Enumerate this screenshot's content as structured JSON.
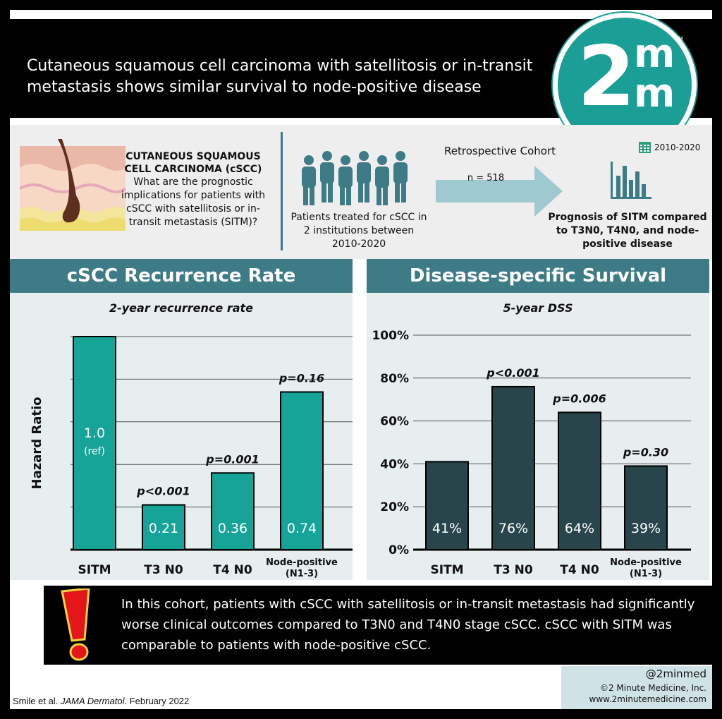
{
  "header": {
    "title": "Cutaneous squamous cell carcinoma with satellitosis or in-transit metastasis shows similar survival to node-positive disease",
    "logo": {
      "two": "2",
      "m": "m",
      "tm": "TM"
    }
  },
  "info": {
    "cscc_title": "CUTANEOUS SQUAMOUS CELL CARCINOMA (cSCC)",
    "cscc_question": "What are the prognostic implications for patients with cSCC with satellitosis or in-transit metastasis (SITM)?",
    "patients": "Patients treated for cSCC in 2 institutions between 2010-2020",
    "cohort_label": "Retrospective Cohort",
    "n": "n = 518",
    "years": "2010-2020",
    "prognosis": "Prognosis of SITM compared to T3N0, T4N0, and node-positive disease",
    "icons": [
      "skin-hair-follicle-icon",
      "people-group-icon",
      "arrow-right-icon",
      "calendar-icon",
      "bar-chart-icon"
    ]
  },
  "panels": {
    "left_header": "cSCC Recurrence Rate",
    "right_header": "Disease-specific Survival"
  },
  "chart_data": [
    {
      "type": "bar",
      "title": "2-year recurrence rate",
      "ylabel": "Hazard Ratio",
      "ylim": [
        0,
        1.0
      ],
      "grid": true,
      "color": "#15a497",
      "categories": [
        "SITM",
        "T3 N0",
        "T4 N0",
        "Node-positive\n(N1-3)"
      ],
      "values": [
        1.0,
        0.21,
        0.36,
        0.74
      ],
      "value_labels": [
        "1.0\n(ref)",
        "0.21",
        "0.36",
        "0.74"
      ],
      "pvalues": [
        "",
        "p<0.001",
        "p=0.001",
        "p=0.16"
      ]
    },
    {
      "type": "bar",
      "title": "5-year DSS",
      "ylim": [
        0,
        100
      ],
      "yticks": [
        "0%",
        "20%",
        "40%",
        "60%",
        "80%",
        "100%"
      ],
      "grid": true,
      "color": "#27454a",
      "categories": [
        "SITM",
        "T3 N0",
        "T4 N0",
        "Node-positive\n(N1-3)"
      ],
      "values": [
        41,
        76,
        64,
        39
      ],
      "value_labels": [
        "41%",
        "76%",
        "64%",
        "39%"
      ],
      "pvalues": [
        "",
        "p<0.001",
        "p=0.006",
        "p=0.30"
      ]
    }
  ],
  "conclusion": "In this cohort, patients with cSCC with satellitosis or in-transit metastasis had significantly worse clinical outcomes compared to T3N0 and T4N0 stage cSCC. cSCC with SITM was comparable to patients with node-positive cSCC.",
  "footer": {
    "handle": "@2minmed",
    "company": "©2 Minute Medicine, Inc.",
    "url": "www.2minutemedicine.com",
    "citation_authors": "Smile et al.",
    "citation_journal": "JAMA Dermatol",
    "citation_date": ". February 2022"
  }
}
